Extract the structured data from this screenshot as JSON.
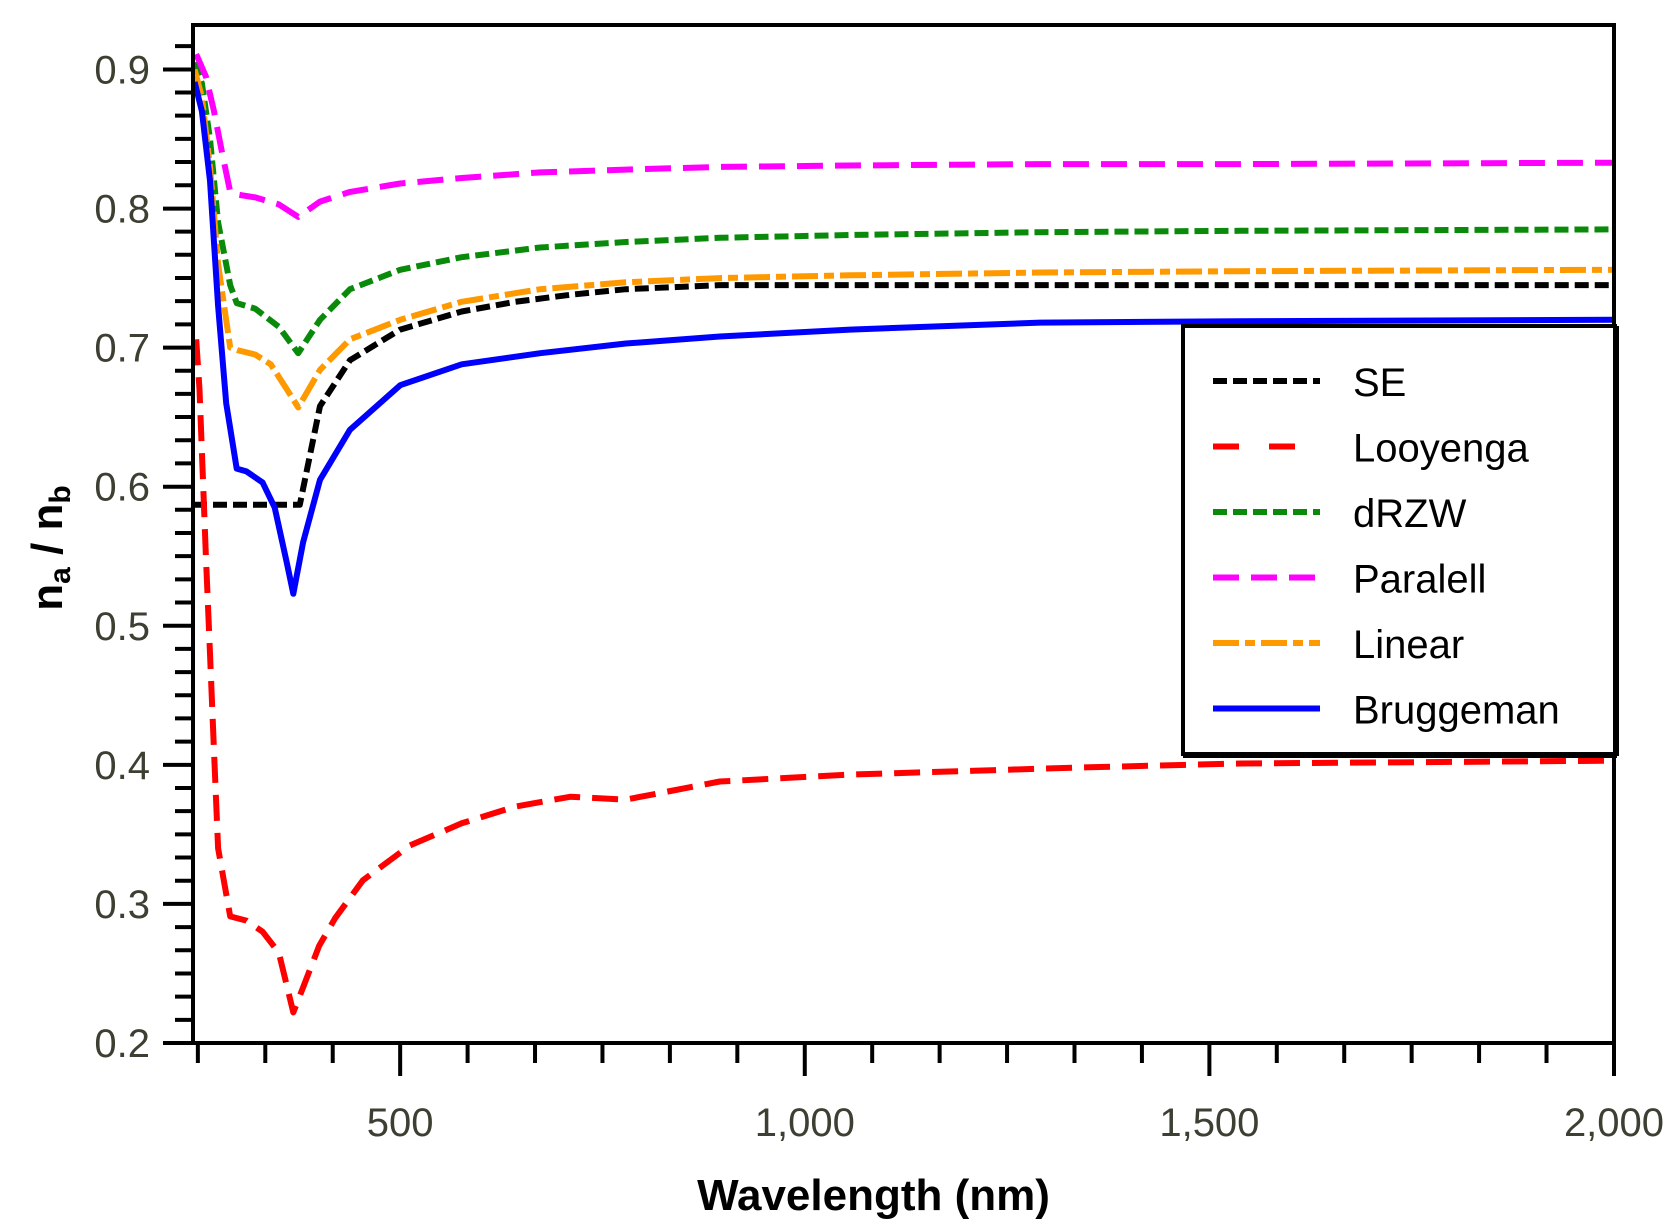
{
  "chart_data": {
    "type": "line",
    "title": "",
    "xlabel": "Wavelength (nm)",
    "ylabel": {
      "main": "n",
      "sub_a": "a",
      "sep": " / ",
      "sub_b": "b",
      "full": "n_a / n_b"
    },
    "xlim": [
      244,
      2000
    ],
    "ylim": [
      0.2,
      0.932
    ],
    "grid": false,
    "legend_position": "center-right",
    "x_ticks": [
      {
        "value": 500,
        "label": "500"
      },
      {
        "value": 1000,
        "label": "1,000"
      },
      {
        "value": 1500,
        "label": "1,500"
      },
      {
        "value": 2000,
        "label": "2,000"
      }
    ],
    "y_ticks": [
      {
        "value": 0.2,
        "label": "0.2"
      },
      {
        "value": 0.3,
        "label": "0.3"
      },
      {
        "value": 0.4,
        "label": "0.4"
      },
      {
        "value": 0.5,
        "label": "0.5"
      },
      {
        "value": 0.6,
        "label": "0.6"
      },
      {
        "value": 0.7,
        "label": "0.7"
      },
      {
        "value": 0.8,
        "label": "0.8"
      },
      {
        "value": 0.9,
        "label": "0.9"
      }
    ],
    "x_minor_step": 83.33,
    "y_minor_step": 0.01667,
    "series": [
      {
        "name": "SE",
        "color": "#000000",
        "dash": "short-dash",
        "x": [
          244,
          290,
          330,
          376,
          401,
          438,
          500,
          576,
          642,
          710,
          779,
          895,
          1056,
          1291,
          1538,
          2000
        ],
        "y": [
          0.587,
          0.587,
          0.587,
          0.587,
          0.658,
          0.691,
          0.713,
          0.726,
          0.733,
          0.738,
          0.742,
          0.745,
          0.745,
          0.745,
          0.745,
          0.745
        ]
      },
      {
        "name": "Looyenga",
        "color": "#ff0000",
        "dash": "long-dash",
        "x": [
          248,
          252,
          256,
          260,
          265,
          270,
          275,
          290,
          310,
          330,
          350,
          368,
          380,
          400,
          420,
          454,
          512,
          576,
          642,
          710,
          779,
          895,
          1056,
          1335,
          1538,
          2000
        ],
        "y": [
          0.706,
          0.67,
          0.61,
          0.55,
          0.48,
          0.41,
          0.34,
          0.291,
          0.288,
          0.28,
          0.265,
          0.222,
          0.24,
          0.27,
          0.29,
          0.317,
          0.342,
          0.358,
          0.37,
          0.377,
          0.375,
          0.388,
          0.393,
          0.398,
          0.401,
          0.403
        ]
      },
      {
        "name": "dRZW",
        "color": "#0a8a0a",
        "dash": "dotted-dash",
        "x": [
          246,
          255,
          265,
          275,
          290,
          298,
          321,
          350,
          374,
          401,
          438,
          500,
          576,
          673,
          779,
          895,
          1056,
          1291,
          1538,
          2000
        ],
        "y": [
          0.905,
          0.89,
          0.85,
          0.79,
          0.745,
          0.732,
          0.728,
          0.715,
          0.696,
          0.72,
          0.742,
          0.756,
          0.765,
          0.772,
          0.776,
          0.779,
          0.781,
          0.783,
          0.784,
          0.785
        ]
      },
      {
        "name": "Paralell",
        "color": "#ff00ff",
        "dash": "long-dash",
        "x": [
          248,
          260,
          270,
          280,
          290,
          300,
          321,
          350,
          374,
          401,
          438,
          500,
          576,
          673,
          779,
          895,
          1056,
          1291,
          1538,
          2000
        ],
        "y": [
          0.911,
          0.895,
          0.87,
          0.84,
          0.812,
          0.81,
          0.808,
          0.803,
          0.794,
          0.805,
          0.812,
          0.818,
          0.822,
          0.826,
          0.828,
          0.83,
          0.831,
          0.832,
          0.832,
          0.833
        ]
      },
      {
        "name": "Linear",
        "color": "#ff9900",
        "dash": "dash-dot",
        "x": [
          246,
          255,
          265,
          275,
          290,
          300,
          321,
          340,
          360,
          374,
          401,
          438,
          500,
          576,
          673,
          779,
          895,
          1056,
          1291,
          1538,
          2000
        ],
        "y": [
          0.9,
          0.88,
          0.83,
          0.76,
          0.7,
          0.698,
          0.695,
          0.688,
          0.67,
          0.657,
          0.684,
          0.706,
          0.72,
          0.733,
          0.742,
          0.747,
          0.75,
          0.752,
          0.754,
          0.755,
          0.756
        ]
      },
      {
        "name": "Bruggeman",
        "color": "#0000ff",
        "dash": "solid",
        "x": [
          246,
          255,
          265,
          275,
          285,
          298,
          310,
          330,
          345,
          360,
          368,
          380,
          401,
          438,
          500,
          576,
          673,
          779,
          895,
          1056,
          1291,
          1538,
          2000
        ],
        "y": [
          0.891,
          0.87,
          0.82,
          0.73,
          0.66,
          0.613,
          0.611,
          0.603,
          0.585,
          0.545,
          0.523,
          0.56,
          0.605,
          0.641,
          0.673,
          0.688,
          0.696,
          0.703,
          0.708,
          0.713,
          0.718,
          0.719,
          0.72
        ]
      }
    ]
  }
}
